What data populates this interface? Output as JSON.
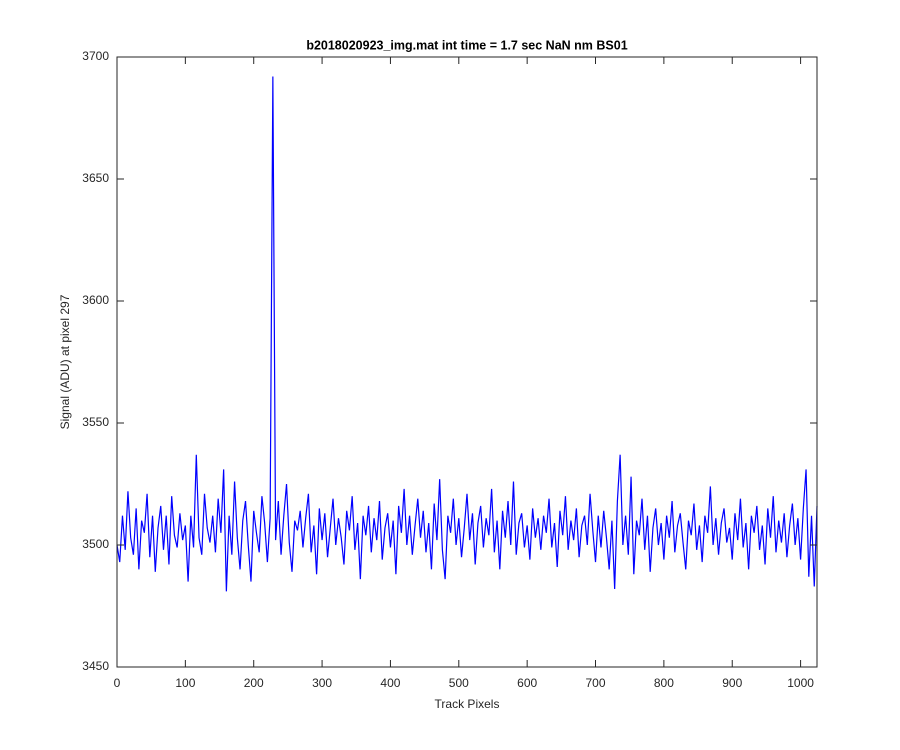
{
  "chart_data": {
    "type": "line",
    "title": "b2018020923_img.mat int time = 1.7 sec  NaN nm BS01",
    "x_label": "Track Pixels",
    "y_label": "Signal (ADU) at pixel 297",
    "xlim": [
      0,
      1024
    ],
    "ylim": [
      3450,
      3700
    ],
    "xticks": [
      0,
      100,
      200,
      300,
      400,
      500,
      600,
      700,
      800,
      900,
      1000
    ],
    "yticks": [
      3450,
      3500,
      3550,
      3600,
      3650,
      3700
    ],
    "grid": false,
    "x": [
      0,
      4,
      8,
      12,
      16,
      20,
      24,
      28,
      32,
      36,
      40,
      44,
      48,
      52,
      56,
      60,
      64,
      68,
      72,
      76,
      80,
      84,
      88,
      92,
      96,
      100,
      104,
      108,
      112,
      116,
      120,
      124,
      128,
      132,
      136,
      140,
      144,
      148,
      152,
      156,
      160,
      164,
      168,
      172,
      176,
      180,
      184,
      188,
      192,
      196,
      200,
      204,
      208,
      212,
      216,
      220,
      224,
      228,
      232,
      236,
      240,
      244,
      248,
      252,
      256,
      260,
      264,
      268,
      272,
      276,
      280,
      284,
      288,
      292,
      296,
      300,
      304,
      308,
      312,
      316,
      320,
      324,
      328,
      332,
      336,
      340,
      344,
      348,
      352,
      356,
      360,
      364,
      368,
      372,
      376,
      380,
      384,
      388,
      392,
      396,
      400,
      404,
      408,
      412,
      416,
      420,
      424,
      428,
      432,
      436,
      440,
      444,
      448,
      452,
      456,
      460,
      464,
      468,
      472,
      476,
      480,
      484,
      488,
      492,
      496,
      500,
      504,
      508,
      512,
      516,
      520,
      524,
      528,
      532,
      536,
      540,
      544,
      548,
      552,
      556,
      560,
      564,
      568,
      572,
      576,
      580,
      584,
      588,
      592,
      596,
      600,
      604,
      608,
      612,
      616,
      620,
      624,
      628,
      632,
      636,
      640,
      644,
      648,
      652,
      656,
      660,
      664,
      668,
      672,
      676,
      680,
      684,
      688,
      692,
      696,
      700,
      704,
      708,
      712,
      716,
      720,
      724,
      728,
      732,
      736,
      740,
      744,
      748,
      752,
      756,
      760,
      764,
      768,
      772,
      776,
      780,
      784,
      788,
      792,
      796,
      800,
      804,
      808,
      812,
      816,
      820,
      824,
      828,
      832,
      836,
      840,
      844,
      848,
      852,
      856,
      860,
      864,
      868,
      872,
      876,
      880,
      884,
      888,
      892,
      896,
      900,
      904,
      908,
      912,
      916,
      920,
      924,
      928,
      932,
      936,
      940,
      944,
      948,
      952,
      956,
      960,
      964,
      968,
      972,
      976,
      980,
      984,
      988,
      992,
      996,
      1000,
      1004,
      1008,
      1012,
      1016,
      1020,
      1024
    ],
    "series": [
      {
        "color": "#0000ff",
        "values": [
          3500,
          3493,
          3512,
          3498,
          3522,
          3503,
          3496,
          3515,
          3490,
          3510,
          3505,
          3521,
          3495,
          3512,
          3489,
          3507,
          3516,
          3498,
          3512,
          3492,
          3520,
          3504,
          3499,
          3513,
          3502,
          3508,
          3485,
          3512,
          3499,
          3537,
          3503,
          3496,
          3521,
          3507,
          3501,
          3512,
          3497,
          3519,
          3505,
          3531,
          3481,
          3512,
          3496,
          3526,
          3503,
          3490,
          3510,
          3518,
          3500,
          3485,
          3514,
          3505,
          3497,
          3520,
          3509,
          3493,
          3511,
          3692,
          3502,
          3518,
          3496,
          3512,
          3525,
          3501,
          3489,
          3510,
          3506,
          3514,
          3499,
          3511,
          3521,
          3497,
          3508,
          3488,
          3515,
          3502,
          3513,
          3495,
          3507,
          3519,
          3500,
          3511,
          3503,
          3492,
          3514,
          3506,
          3520,
          3498,
          3509,
          3486,
          3512,
          3504,
          3516,
          3497,
          3511,
          3502,
          3518,
          3494,
          3507,
          3513,
          3499,
          3510,
          3488,
          3516,
          3505,
          3523,
          3500,
          3512,
          3496,
          3508,
          3519,
          3503,
          3514,
          3497,
          3509,
          3490,
          3517,
          3502,
          3527,
          3498,
          3486,
          3512,
          3505,
          3519,
          3500,
          3511,
          3495,
          3507,
          3521,
          3502,
          3513,
          3492,
          3509,
          3516,
          3499,
          3511,
          3504,
          3523,
          3497,
          3510,
          3490,
          3514,
          3503,
          3518,
          3500,
          3526,
          3496,
          3509,
          3513,
          3499,
          3508,
          3494,
          3515,
          3503,
          3511,
          3498,
          3512,
          3505,
          3519,
          3499,
          3509,
          3491,
          3514,
          3504,
          3520,
          3498,
          3510,
          3502,
          3515,
          3495,
          3508,
          3512,
          3500,
          3521,
          3506,
          3493,
          3512,
          3499,
          3514,
          3503,
          3490,
          3510,
          3482,
          3518,
          3537,
          3500,
          3512,
          3496,
          3528,
          3488,
          3510,
          3504,
          3519,
          3498,
          3512,
          3489,
          3507,
          3515,
          3500,
          3509,
          3494,
          3512,
          3503,
          3518,
          3497,
          3508,
          3513,
          3501,
          3490,
          3510,
          3504,
          3517,
          3498,
          3508,
          3493,
          3512,
          3505,
          3524,
          3500,
          3511,
          3496,
          3509,
          3515,
          3501,
          3507,
          3494,
          3513,
          3502,
          3519,
          3499,
          3509,
          3490,
          3512,
          3505,
          3516,
          3498,
          3508,
          3492,
          3515,
          3503,
          3520,
          3497,
          3510,
          3501,
          3513,
          3495,
          3508,
          3517,
          3500,
          3511,
          3494,
          3515,
          3531,
          3487,
          3512,
          3483,
          3516
        ]
      }
    ]
  }
}
